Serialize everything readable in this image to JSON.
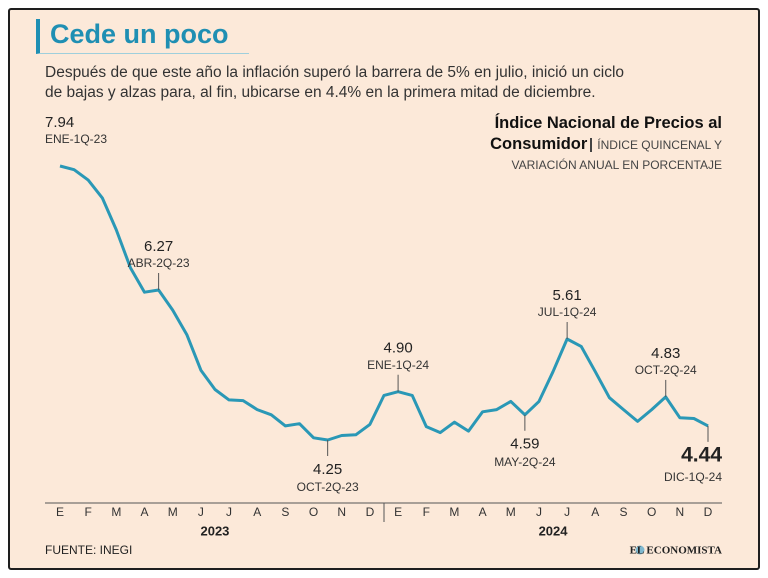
{
  "chart_data": {
    "type": "line",
    "title": "Cede un poco",
    "subtitle": [
      "Después de que este año la inflación superó la barrera de 5% en julio, inició un ciclo",
      "de bajas y alzas para, al fin, ubicarse en 4.4% en la primera mitad de diciembre."
    ],
    "chart_label": "Índice Nacional de Precios al Consumidor",
    "chart_sublabel": [
      "ÍNDICE QUINCENAL Y",
      "VARIACIÓN ANUAL EN PORCENTAJE"
    ],
    "color": "#2a98b6",
    "categories": [
      "ENE-1Q-23",
      null,
      null,
      null,
      null,
      null,
      null,
      "ABR-2Q-23",
      null,
      null,
      null,
      null,
      null,
      null,
      null,
      null,
      null,
      null,
      null,
      "OCT-2Q-23",
      null,
      null,
      null,
      null,
      "ENE-1Q-24",
      null,
      null,
      null,
      null,
      null,
      null,
      null,
      null,
      "MAY-2Q-24",
      null,
      null,
      "JUL-1Q-24",
      null,
      null,
      null,
      null,
      null,
      null,
      "OCT-2Q-24",
      null,
      null,
      "DIC-1Q-24"
    ],
    "values": [
      7.94,
      7.89,
      7.75,
      7.51,
      7.08,
      6.57,
      6.24,
      6.27,
      6.0,
      5.67,
      5.19,
      4.93,
      4.79,
      4.78,
      4.66,
      4.59,
      4.44,
      4.47,
      4.28,
      4.25,
      4.31,
      4.32,
      4.46,
      4.85,
      4.9,
      4.85,
      4.43,
      4.35,
      4.49,
      4.37,
      4.63,
      4.66,
      4.77,
      4.59,
      4.77,
      5.17,
      5.61,
      5.51,
      5.17,
      4.82,
      4.66,
      4.5,
      4.66,
      4.83,
      4.55,
      4.54,
      4.44
    ],
    "value_labels": [
      "7.94",
      null,
      null,
      null,
      null,
      null,
      null,
      "6.27",
      null,
      null,
      null,
      null,
      null,
      null,
      null,
      null,
      null,
      null,
      null,
      "4.25",
      null,
      null,
      null,
      null,
      "4.90",
      null,
      null,
      null,
      null,
      null,
      null,
      null,
      null,
      "4.59",
      null,
      null,
      "5.61",
      null,
      null,
      null,
      null,
      null,
      null,
      "4.83",
      null,
      null,
      "4.44"
    ],
    "months": [
      "E",
      "F",
      "M",
      "A",
      "M",
      "J",
      "J",
      "A",
      "S",
      "O",
      "N",
      "D",
      "E",
      "F",
      "M",
      "A",
      "M",
      "J",
      "J",
      "A",
      "S",
      "O",
      "N",
      "D"
    ],
    "years": [
      "2023",
      "2024"
    ],
    "source": "FUENTE: INEGI",
    "brand": "EL ECONOMISTA"
  }
}
